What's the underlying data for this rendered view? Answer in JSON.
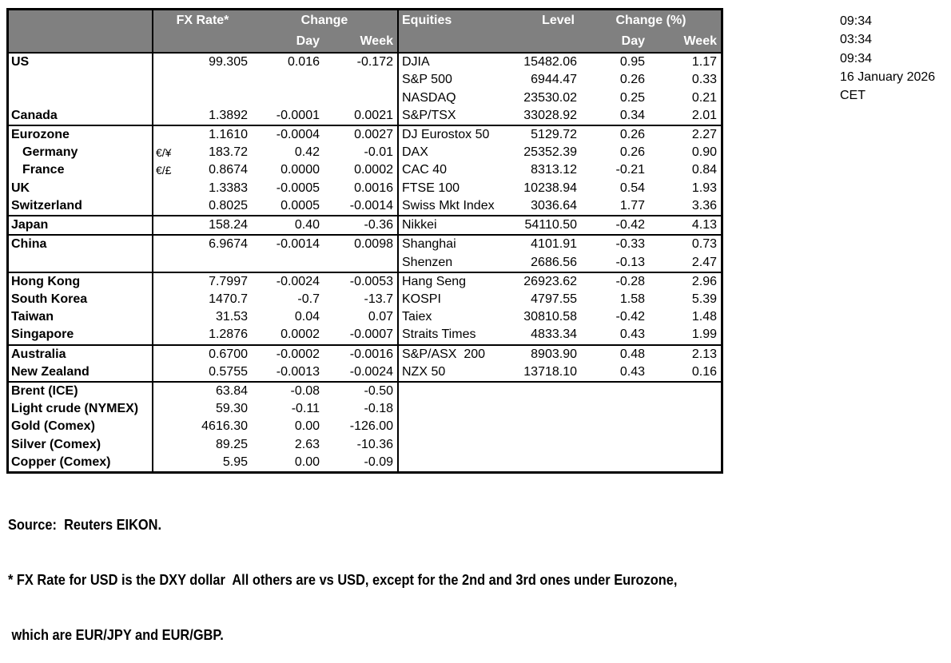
{
  "times": [
    "09:34",
    "03:34",
    "09:34",
    "16 January 2026",
    "CET"
  ],
  "table": {
    "header": {
      "fx_rate": "FX Rate*",
      "change": "Change",
      "day": "Day",
      "week": "Week",
      "equities": "Equities",
      "level": "Level",
      "change_pct": "Change (%)",
      "day2": "Day",
      "week2": "Week"
    },
    "rows": [
      {
        "country": "US",
        "fx": "99.305",
        "day": "0.016",
        "week": "-0.172",
        "equity": "DJIA",
        "level": "15482.06",
        "eday": "0.95",
        "eweek": "1.17"
      },
      {
        "equity": "S&P 500",
        "level": "6944.47",
        "eday": "0.26",
        "eweek": "0.33"
      },
      {
        "equity": "NASDAQ",
        "level": "23530.02",
        "eday": "0.25",
        "eweek": "0.21"
      },
      {
        "country": "Canada",
        "fx": "1.3892",
        "day": "-0.0001",
        "week": "0.0021",
        "equity": "S&P/TSX",
        "level": "33028.92",
        "eday": "0.34",
        "eweek": "2.01",
        "rule_below": true
      },
      {
        "country": "Eurozone",
        "fx": "1.1610",
        "day": "-0.0004",
        "week": "0.0027",
        "equity": "DJ Eurostox 50",
        "level": "5129.72",
        "eday": "0.26",
        "eweek": "2.27"
      },
      {
        "country": "Germany",
        "indent": true,
        "sym": "€/¥",
        "fx": "183.72",
        "day": "0.42",
        "week": "-0.01",
        "equity": "DAX",
        "level": "25352.39",
        "eday": "0.26",
        "eweek": "0.90"
      },
      {
        "country": "France",
        "indent": true,
        "sym": "€/£",
        "fx": "0.8674",
        "day": "0.0000",
        "week": "0.0002",
        "equity": "CAC 40",
        "level": "8313.12",
        "eday": "-0.21",
        "eweek": "0.84"
      },
      {
        "country": "UK",
        "fx": "1.3383",
        "day": "-0.0005",
        "week": "0.0016",
        "equity": "FTSE 100",
        "level": "10238.94",
        "eday": "0.54",
        "eweek": "1.93"
      },
      {
        "country": "Switzerland",
        "fx": "0.8025",
        "day": "0.0005",
        "week": "-0.0014",
        "equity": "Swiss Mkt Index",
        "level": "3036.64",
        "eday": "1.77",
        "eweek": "3.36",
        "rule_below": true
      },
      {
        "country": "Japan",
        "fx": "158.24",
        "day": "0.40",
        "week": "-0.36",
        "equity": "Nikkei",
        "level": "54110.50",
        "eday": "-0.42",
        "eweek": "4.13",
        "rule_below": true
      },
      {
        "country": "China",
        "fx": "6.9674",
        "day": "-0.0014",
        "week": "0.0098",
        "equity": "Shanghai",
        "level": "4101.91",
        "eday": "-0.33",
        "eweek": "0.73"
      },
      {
        "equity": "Shenzen",
        "level": "2686.56",
        "eday": "-0.13",
        "eweek": "2.47",
        "rule_below": true
      },
      {
        "country": "Hong Kong",
        "fx": "7.7997",
        "day": "-0.0024",
        "week": "-0.0053",
        "equity": "Hang Seng",
        "level": "26923.62",
        "eday": "-0.28",
        "eweek": "2.96"
      },
      {
        "country": "South Korea",
        "fx": "1470.7",
        "day": "-0.7",
        "week": "-13.7",
        "equity": "KOSPI",
        "level": "4797.55",
        "eday": "1.58",
        "eweek": "5.39"
      },
      {
        "country": "Taiwan",
        "fx": "31.53",
        "day": "0.04",
        "week": "0.07",
        "equity": "Taiex",
        "level": "30810.58",
        "eday": "-0.42",
        "eweek": "1.48"
      },
      {
        "country": "Singapore",
        "fx": "1.2876",
        "day": "0.0002",
        "week": "-0.0007",
        "equity": "Straits Times",
        "level": "4833.34",
        "eday": "0.43",
        "eweek": "1.99",
        "rule_below": true
      },
      {
        "country": "Australia",
        "fx": "0.6700",
        "day": "-0.0002",
        "week": "-0.0016",
        "equity": "S&P/ASX  200",
        "level": "8903.90",
        "eday": "0.48",
        "eweek": "2.13"
      },
      {
        "country": "New Zealand",
        "fx": "0.5755",
        "day": "-0.0013",
        "week": "-0.0024",
        "equity": "NZX 50",
        "level": "13718.10",
        "eday": "0.43",
        "eweek": "0.16",
        "rule_below": true
      },
      {
        "country": "Brent (ICE)",
        "fx": "63.84",
        "day": "-0.08",
        "week": "-0.50"
      },
      {
        "country": "Light crude (NYMEX)",
        "fx": "59.30",
        "day": "-0.11",
        "week": "-0.18"
      },
      {
        "country": "Gold (Comex)",
        "fx": "4616.30",
        "day": "0.00",
        "week": "-126.00"
      },
      {
        "country": "Silver (Comex)",
        "fx": "89.25",
        "day": "2.63",
        "week": "-10.36"
      },
      {
        "country": "Copper (Comex)",
        "fx": "5.95",
        "day": "0.00",
        "week": "-0.09"
      }
    ]
  },
  "footer": {
    "source": "Source:  Reuters EIKON.",
    "note_line1": "* FX Rate for USD is the DXY dollar  All others are vs USD, except for the 2nd and 3rd ones under Eurozone,",
    "note_line2": " which are EUR/JPY and EUR/GBP."
  },
  "colors": {
    "header_bg": "#808080",
    "header_text": "#ffffff",
    "border": "#000000",
    "text": "#000000"
  }
}
